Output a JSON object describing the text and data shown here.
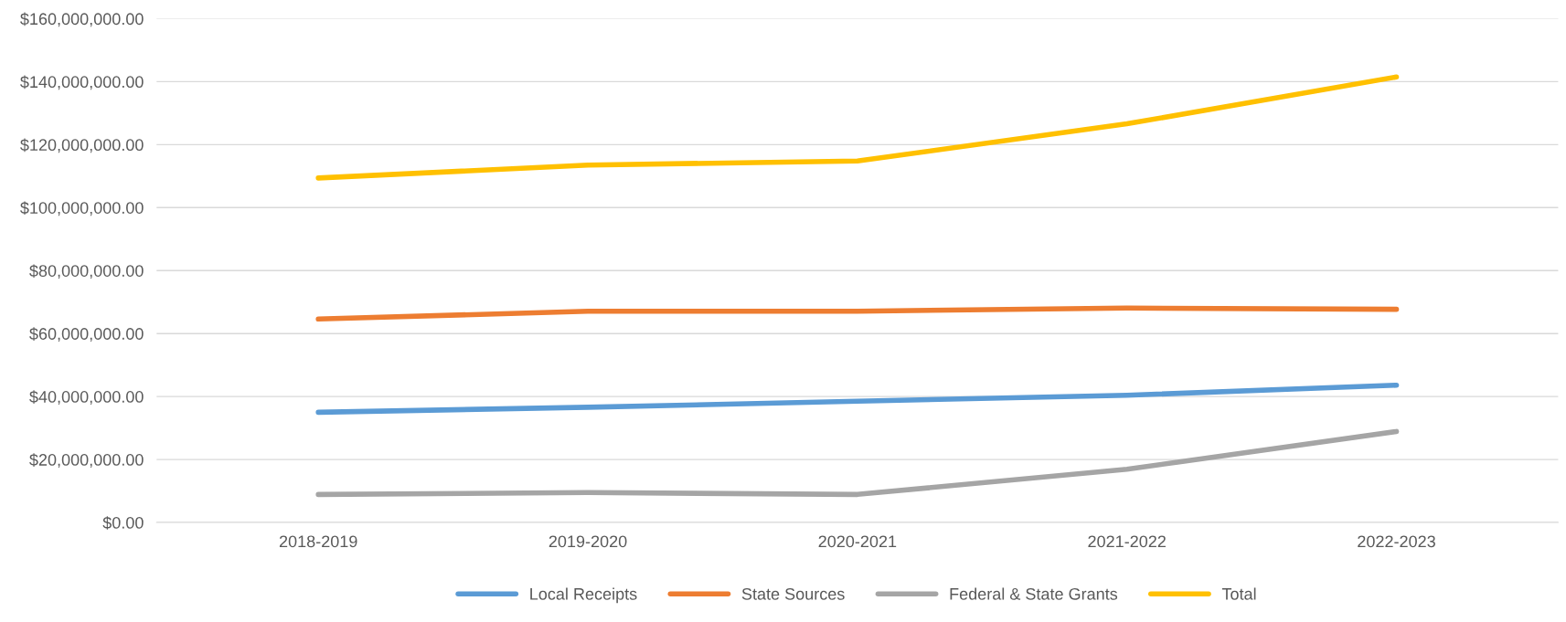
{
  "chart_data": {
    "type": "line",
    "categories": [
      "2018-2019",
      "2019-2020",
      "2020-2021",
      "2021-2022",
      "2022-2023"
    ],
    "series": [
      {
        "name": "Local Receipts",
        "color": "#5b9bd5",
        "values": [
          35000000,
          36600000,
          38500000,
          40400000,
          43600000
        ]
      },
      {
        "name": "State Sources",
        "color": "#ed7d31",
        "values": [
          64600000,
          67100000,
          67100000,
          68100000,
          67700000
        ]
      },
      {
        "name": "Federal & State Grants",
        "color": "#a5a5a5",
        "values": [
          8900000,
          9500000,
          8900000,
          16900000,
          28900000
        ]
      },
      {
        "name": "Total",
        "color": "#ffc000",
        "values": [
          109400000,
          113500000,
          114800000,
          126600000,
          141500000
        ]
      }
    ],
    "ylim": [
      0,
      160000000
    ],
    "yticks": [
      {
        "value": 0,
        "label": "$0.00"
      },
      {
        "value": 20000000,
        "label": "$20,000,000.00"
      },
      {
        "value": 40000000,
        "label": "$40,000,000.00"
      },
      {
        "value": 60000000,
        "label": "$60,000,000.00"
      },
      {
        "value": 80000000,
        "label": "$80,000,000.00"
      },
      {
        "value": 100000000,
        "label": "$100,000,000.00"
      },
      {
        "value": 120000000,
        "label": "$120,000,000.00"
      },
      {
        "value": 140000000,
        "label": "$140,000,000.00"
      },
      {
        "value": 160000000,
        "label": "$160,000,000.00"
      }
    ],
    "grid": "y",
    "legend": "bottom",
    "line_style": "solid"
  }
}
